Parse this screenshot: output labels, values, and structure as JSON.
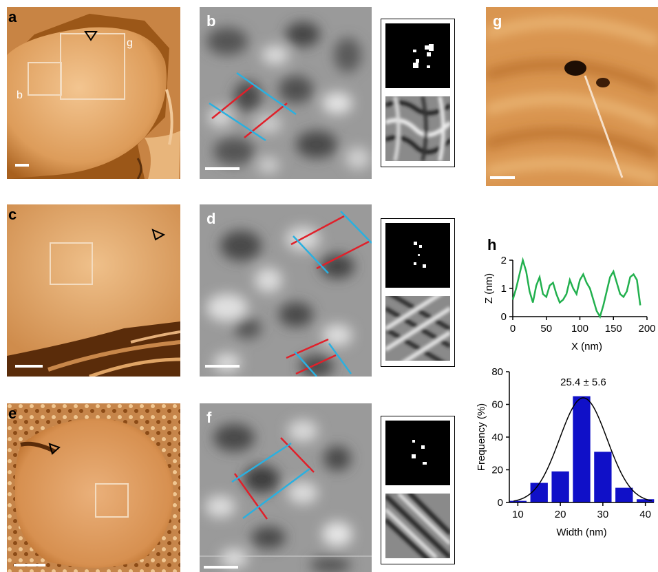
{
  "figure": {
    "panels": {
      "a": {
        "label": "a",
        "sub_b": "b",
        "sub_g": "g"
      },
      "b": {
        "label": "b"
      },
      "c": {
        "label": "c"
      },
      "d": {
        "label": "d"
      },
      "e": {
        "label": "e"
      },
      "f": {
        "label": "f"
      },
      "g": {
        "label": "g"
      },
      "h": {
        "label": "h"
      }
    },
    "colors": {
      "afm_light": "#e8b075",
      "afm_dark": "#8a4a12",
      "lattice_red": "#e0202a",
      "lattice_blue": "#2ab0e0",
      "profile_line": "#22b04e",
      "histogram_bar": "#1010c8"
    }
  },
  "chart_data": [
    {
      "type": "line",
      "xlabel": "X (nm)",
      "ylabel": "Z (nm)",
      "xticks": [
        "0",
        "50",
        "100",
        "150",
        "200"
      ],
      "yticks": [
        "0",
        "1",
        "2"
      ],
      "xlim": [
        0,
        200
      ],
      "ylim": [
        0,
        2
      ],
      "x": [
        0,
        5,
        10,
        15,
        20,
        25,
        30,
        35,
        40,
        45,
        50,
        55,
        60,
        65,
        70,
        75,
        80,
        85,
        90,
        95,
        100,
        105,
        110,
        115,
        120,
        125,
        130,
        135,
        140,
        145,
        150,
        155,
        160,
        165,
        170,
        175,
        180,
        185,
        190
      ],
      "y": [
        0.6,
        1.0,
        1.5,
        2.0,
        1.6,
        0.9,
        0.5,
        1.1,
        1.4,
        0.8,
        0.7,
        1.1,
        1.2,
        0.8,
        0.5,
        0.6,
        0.8,
        1.3,
        1.0,
        0.8,
        1.3,
        1.5,
        1.2,
        1.0,
        0.6,
        0.2,
        0.0,
        0.4,
        0.9,
        1.4,
        1.6,
        1.2,
        0.8,
        0.7,
        0.9,
        1.4,
        1.5,
        1.3,
        0.4
      ]
    },
    {
      "type": "bar",
      "title": "25.4 ± 5.6",
      "xlabel": "Width (nm)",
      "ylabel": "Frequency (%)",
      "xticks": [
        "10",
        "20",
        "30",
        "40"
      ],
      "yticks": [
        "0",
        "20",
        "40",
        "60",
        "80"
      ],
      "xlim": [
        8,
        42
      ],
      "ylim": [
        0,
        80
      ],
      "bin_centers": [
        10,
        15,
        20,
        25,
        30,
        35,
        40
      ],
      "values": [
        1,
        12,
        19,
        65,
        31,
        9,
        2
      ],
      "fit": {
        "type": "gaussian",
        "mean": 25.4,
        "sd": 5.6,
        "peak": 64
      }
    }
  ]
}
